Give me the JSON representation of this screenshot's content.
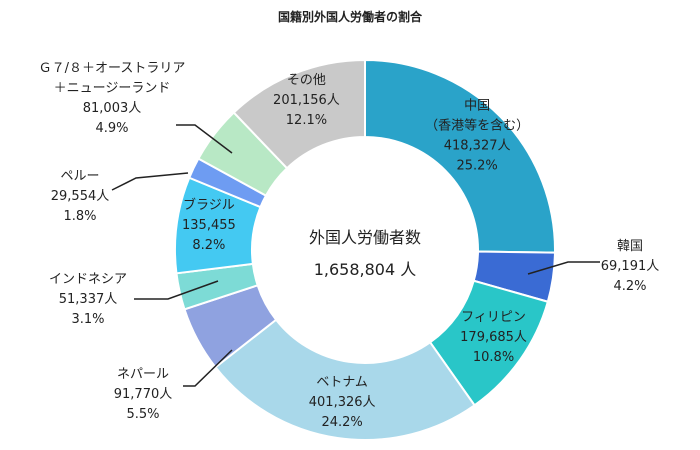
{
  "chart_data": {
    "type": "donut",
    "title": "国籍別外国人労働者の割合",
    "center_label": "外国人労働者数",
    "center_value": "1,658,804 人",
    "unit": "人",
    "slices": [
      {
        "name": "中国",
        "sub": "（香港等を含む）",
        "value": 418327,
        "value_label": "418,327人",
        "percent": 25.2,
        "percent_label": "25.2%",
        "color": "#2aa3c9"
      },
      {
        "name": "韓国",
        "value": 69191,
        "value_label": "69,191人",
        "percent": 4.2,
        "percent_label": "4.2%",
        "color": "#3a6bd4"
      },
      {
        "name": "フィリピン",
        "value": 179685,
        "value_label": "179,685人",
        "percent": 10.8,
        "percent_label": "10.8%",
        "color": "#29c6c8"
      },
      {
        "name": "ベトナム",
        "value": 401326,
        "value_label": "401,326人",
        "percent": 24.2,
        "percent_label": "24.2%",
        "color": "#a9d8ea"
      },
      {
        "name": "ネパール",
        "value": 91770,
        "value_label": "91,770人",
        "percent": 5.5,
        "percent_label": "5.5%",
        "color": "#8fa2e0"
      },
      {
        "name": "インドネシア",
        "value": 51337,
        "value_label": "51,337人",
        "percent": 3.1,
        "percent_label": "3.1%",
        "color": "#7ddbd6"
      },
      {
        "name": "ブラジル",
        "value": 135455,
        "value_label": "135,455",
        "percent": 8.2,
        "percent_label": "8.2%",
        "color": "#44c9f2"
      },
      {
        "name": "ペルー",
        "value": 29554,
        "value_label": "29,554人",
        "percent": 1.8,
        "percent_label": "1.8%",
        "color": "#6e9cf2"
      },
      {
        "name": "Ｇ７/８＋オーストラリア",
        "sub": "＋ニュージーランド",
        "value": 81003,
        "value_label": "81,003人",
        "percent": 4.9,
        "percent_label": "4.9%",
        "color": "#b8e8c5"
      },
      {
        "name": "その他",
        "value": 201156,
        "value_label": "201,156人",
        "percent": 12.1,
        "percent_label": "12.1%",
        "color": "#c9c9c9"
      }
    ]
  }
}
